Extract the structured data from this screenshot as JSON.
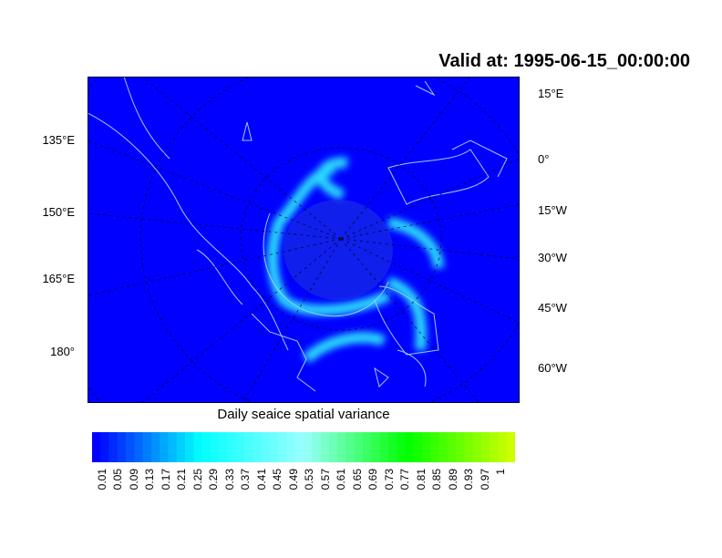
{
  "title": "Valid at: 1995-06-15_00:00:00",
  "map": {
    "colors": {
      "ocean": "#0000ff",
      "ice": "#33ffff",
      "coast": "#99ccff",
      "grid": "#000000"
    },
    "left_labels": [
      "135°E",
      "150°E",
      "165°E",
      "180°"
    ],
    "right_labels": [
      "15°E",
      "0°",
      "15°W",
      "30°W",
      "45°W",
      "60°W"
    ]
  },
  "colorbar": {
    "title": "Daily seaice spatial variance",
    "labels": [
      "0.01",
      "0.05",
      "0.09",
      "0.13",
      "0.17",
      "0.21",
      "0.25",
      "0.29",
      "0.33",
      "0.37",
      "0.41",
      "0.45",
      "0.49",
      "0.53",
      "0.57",
      "0.61",
      "0.65",
      "0.69",
      "0.73",
      "0.77",
      "0.81",
      "0.85",
      "0.89",
      "0.93",
      "0.97",
      "1"
    ],
    "color_stops": [
      "#0000ff",
      "#00ffff",
      "#99ffff",
      "#00ff00",
      "#ccff00"
    ]
  }
}
